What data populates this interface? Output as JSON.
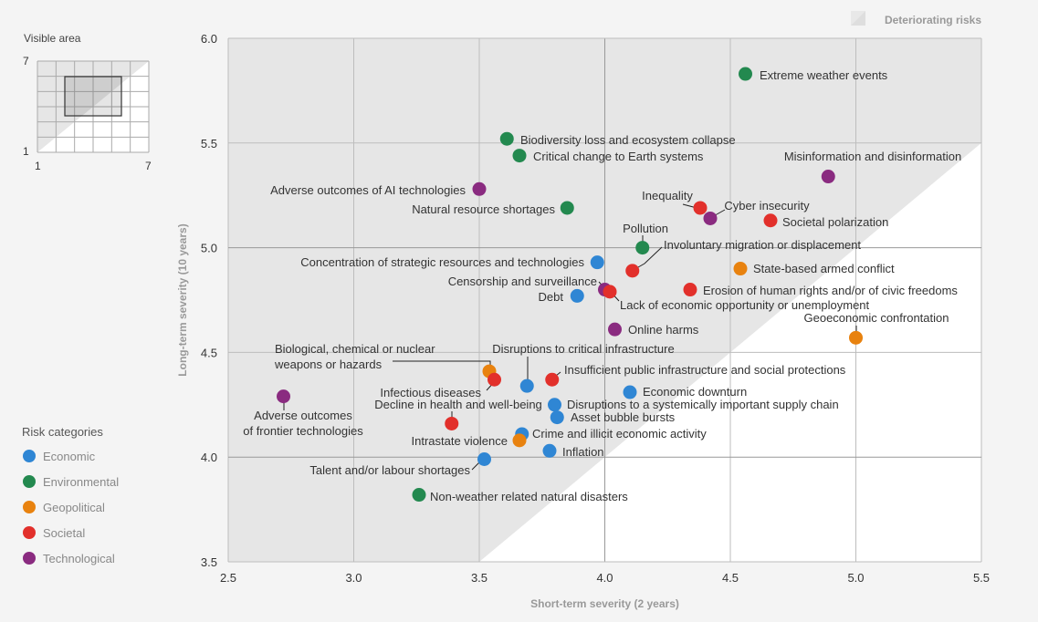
{
  "minimap": {
    "title": "Visible area",
    "y_max": "7",
    "y_min": "1",
    "x_min": "1",
    "x_max": "7"
  },
  "legend_title": "Risk categories",
  "shading_label": "Deteriorating risks",
  "colors": {
    "Economic": "#2f86d4",
    "Environmental": "#23894f",
    "Geopolitical": "#e8820f",
    "Societal": "#e2302b",
    "Technological": "#8a2b80"
  },
  "chart_data": {
    "type": "scatter",
    "xlabel": "Short-term severity (2 years)",
    "ylabel": "Long-term severity (10 years)",
    "xlim": [
      2.5,
      5.5
    ],
    "ylim": [
      3.5,
      6.0
    ],
    "xticks": [
      "2.5",
      "3.0",
      "3.5",
      "4.0",
      "4.5",
      "5.0",
      "5.5"
    ],
    "yticks": [
      "3.5",
      "4.0",
      "4.5",
      "5.0",
      "5.5",
      "6.0"
    ],
    "grid": true,
    "categories": [
      "Economic",
      "Environmental",
      "Geopolitical",
      "Societal",
      "Technological"
    ],
    "points": [
      {
        "label": "Extreme weather events",
        "category": "Environmental",
        "x": 4.56,
        "y": 5.83
      },
      {
        "label": "Biodiversity loss and ecosystem collapse",
        "category": "Environmental",
        "x": 3.61,
        "y": 5.52
      },
      {
        "label": "Critical change to Earth systems",
        "category": "Environmental",
        "x": 3.66,
        "y": 5.44
      },
      {
        "label": "Misinformation and disinformation",
        "category": "Technological",
        "x": 4.89,
        "y": 5.34
      },
      {
        "label": "Adverse outcomes of AI technologies",
        "category": "Technological",
        "x": 3.5,
        "y": 5.28
      },
      {
        "label": "Natural resource shortages",
        "category": "Environmental",
        "x": 3.85,
        "y": 5.19
      },
      {
        "label": "Inequality",
        "category": "Societal",
        "x": 4.38,
        "y": 5.19
      },
      {
        "label": "Cyber insecurity",
        "category": "Technological",
        "x": 4.42,
        "y": 5.14
      },
      {
        "label": "Societal polarization",
        "category": "Societal",
        "x": 4.66,
        "y": 5.13
      },
      {
        "label": "Pollution",
        "category": "Environmental",
        "x": 4.15,
        "y": 5.0
      },
      {
        "label": "Concentration of strategic resources and technologies",
        "category": "Economic",
        "x": 3.97,
        "y": 4.93
      },
      {
        "label": "Involuntary migration or displacement",
        "category": "Societal",
        "x": 4.11,
        "y": 4.89
      },
      {
        "label": "State-based armed conflict",
        "category": "Geopolitical",
        "x": 4.54,
        "y": 4.9
      },
      {
        "label": "Censorship and surveillance",
        "category": "Technological",
        "x": 4.0,
        "y": 4.8
      },
      {
        "label": "Debt",
        "category": "Economic",
        "x": 3.89,
        "y": 4.77
      },
      {
        "label": "Erosion of human rights and/or of civic freedoms",
        "category": "Societal",
        "x": 4.34,
        "y": 4.8
      },
      {
        "label": "Lack of economic opportunity or unemployment",
        "category": "Societal",
        "x": 4.02,
        "y": 4.79
      },
      {
        "label": "Online harms",
        "category": "Technological",
        "x": 4.04,
        "y": 4.61
      },
      {
        "label": "Geoeconomic confrontation",
        "category": "Geopolitical",
        "x": 5.0,
        "y": 4.57
      },
      {
        "label": "Biological, chemical or nuclear weapons or hazards",
        "category": "Geopolitical",
        "x": 3.54,
        "y": 4.41
      },
      {
        "label": "Infectious diseases",
        "category": "Societal",
        "x": 3.56,
        "y": 4.37
      },
      {
        "label": "Disruptions to critical infrastructure",
        "category": "Economic",
        "x": 3.69,
        "y": 4.34
      },
      {
        "label": "Insufficient public infrastructure and social protections",
        "category": "Societal",
        "x": 3.79,
        "y": 4.37
      },
      {
        "label": "Economic downturn",
        "category": "Economic",
        "x": 4.1,
        "y": 4.31
      },
      {
        "label": "Adverse outcomes of frontier technologies",
        "category": "Technological",
        "x": 2.72,
        "y": 4.29
      },
      {
        "label": "Disruptions to a systemically important supply chain",
        "category": "Economic",
        "x": 3.8,
        "y": 4.25
      },
      {
        "label": "Asset bubble bursts",
        "category": "Economic",
        "x": 3.81,
        "y": 4.19
      },
      {
        "label": "Decline in health and well-being",
        "category": "Societal",
        "x": 3.39,
        "y": 4.16
      },
      {
        "label": "Crime and illicit economic activity",
        "category": "Economic",
        "x": 3.67,
        "y": 4.11
      },
      {
        "label": "Intrastate violence",
        "category": "Geopolitical",
        "x": 3.66,
        "y": 4.08
      },
      {
        "label": "Inflation",
        "category": "Economic",
        "x": 3.78,
        "y": 4.03
      },
      {
        "label": "Talent and/or labour shortages",
        "category": "Economic",
        "x": 3.52,
        "y": 3.99
      },
      {
        "label": "Non-weather related natural disasters",
        "category": "Environmental",
        "x": 3.26,
        "y": 3.82
      }
    ]
  }
}
